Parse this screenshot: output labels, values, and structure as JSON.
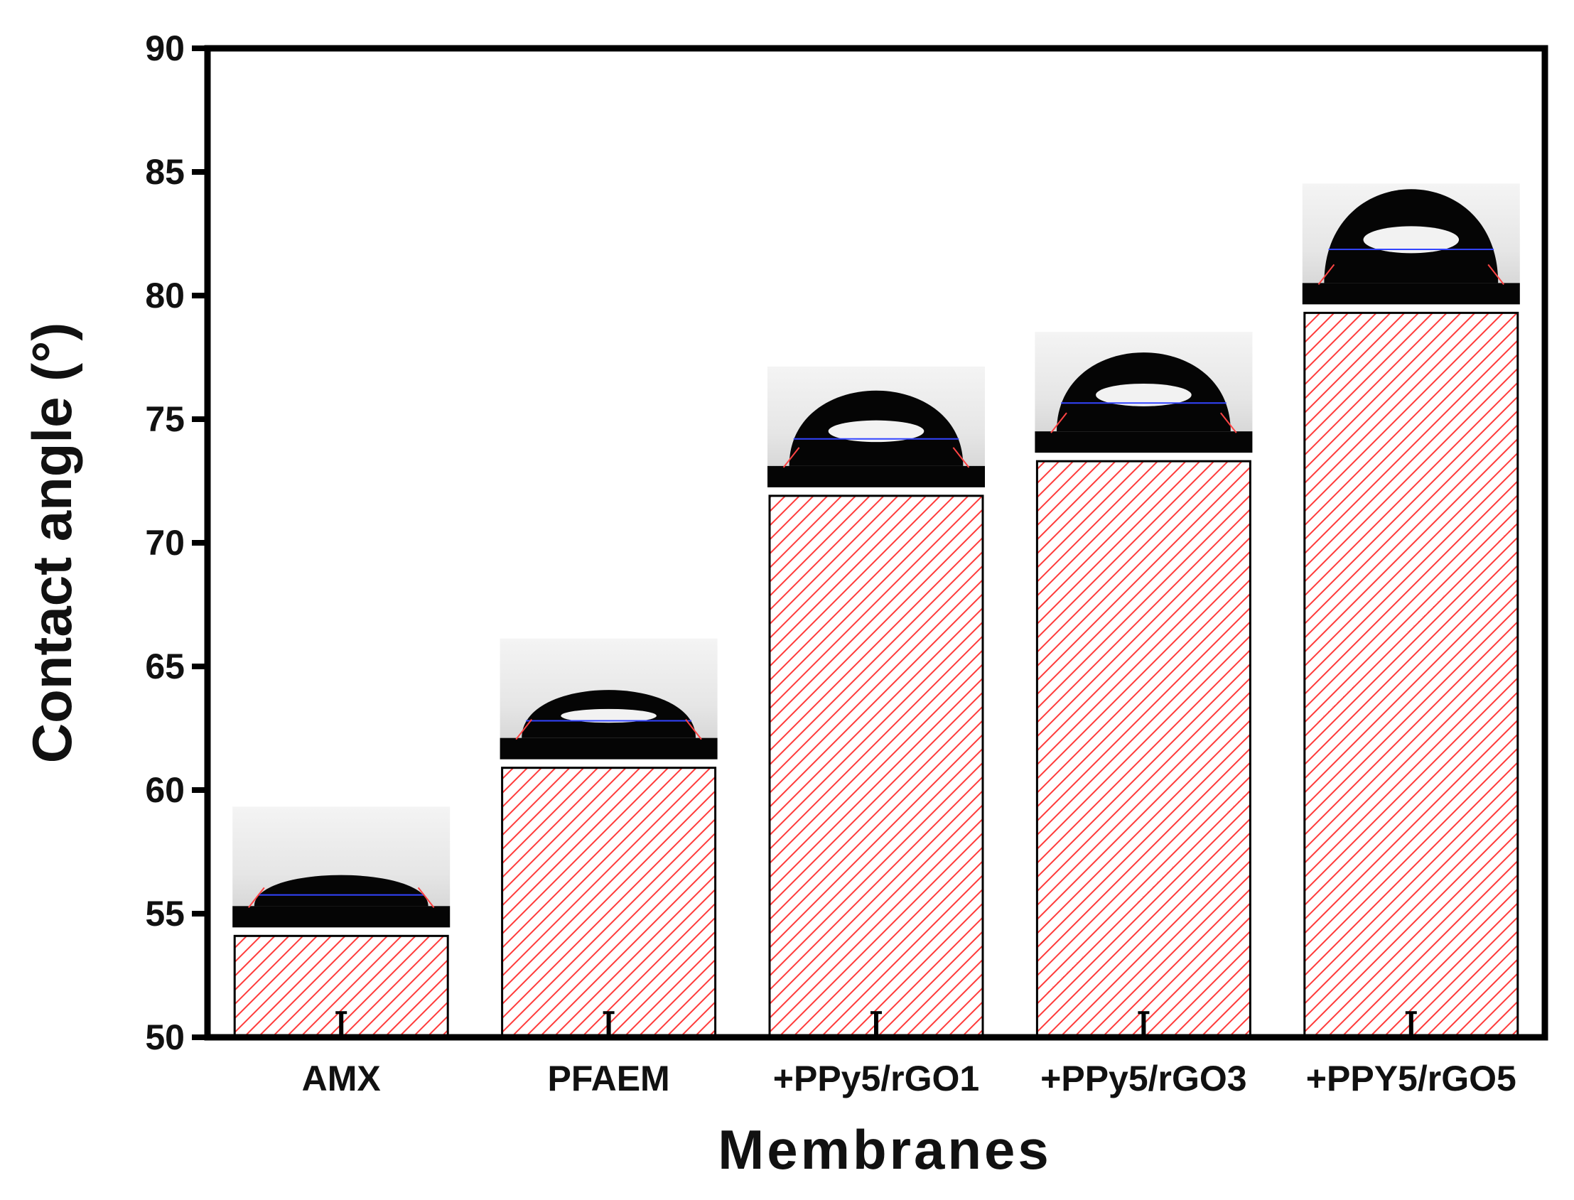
{
  "chart_data": {
    "type": "bar",
    "xlabel": "Membranes",
    "ylabel": "Contact angle (°)",
    "categories": [
      "AMX",
      "PFAEM",
      "+PPy5/rGO1",
      "+PPy5/rGO3",
      "+PPY5/rGO5"
    ],
    "values": [
      54.1,
      60.9,
      71.9,
      73.3,
      79.3
    ],
    "error": [
      0.3,
      0.3,
      0.3,
      0.3,
      0.3
    ],
    "ylim": [
      50,
      90
    ],
    "yticks": [
      "50",
      "55",
      "60",
      "65",
      "70",
      "75",
      "80",
      "85",
      "90"
    ],
    "bar_fill": "hatched",
    "colors": {
      "hatch": "#ff3b3b",
      "bar_border": "#000000",
      "frame": "#000000",
      "droplet": "#000000",
      "baseline_line": "#3344ff"
    }
  }
}
